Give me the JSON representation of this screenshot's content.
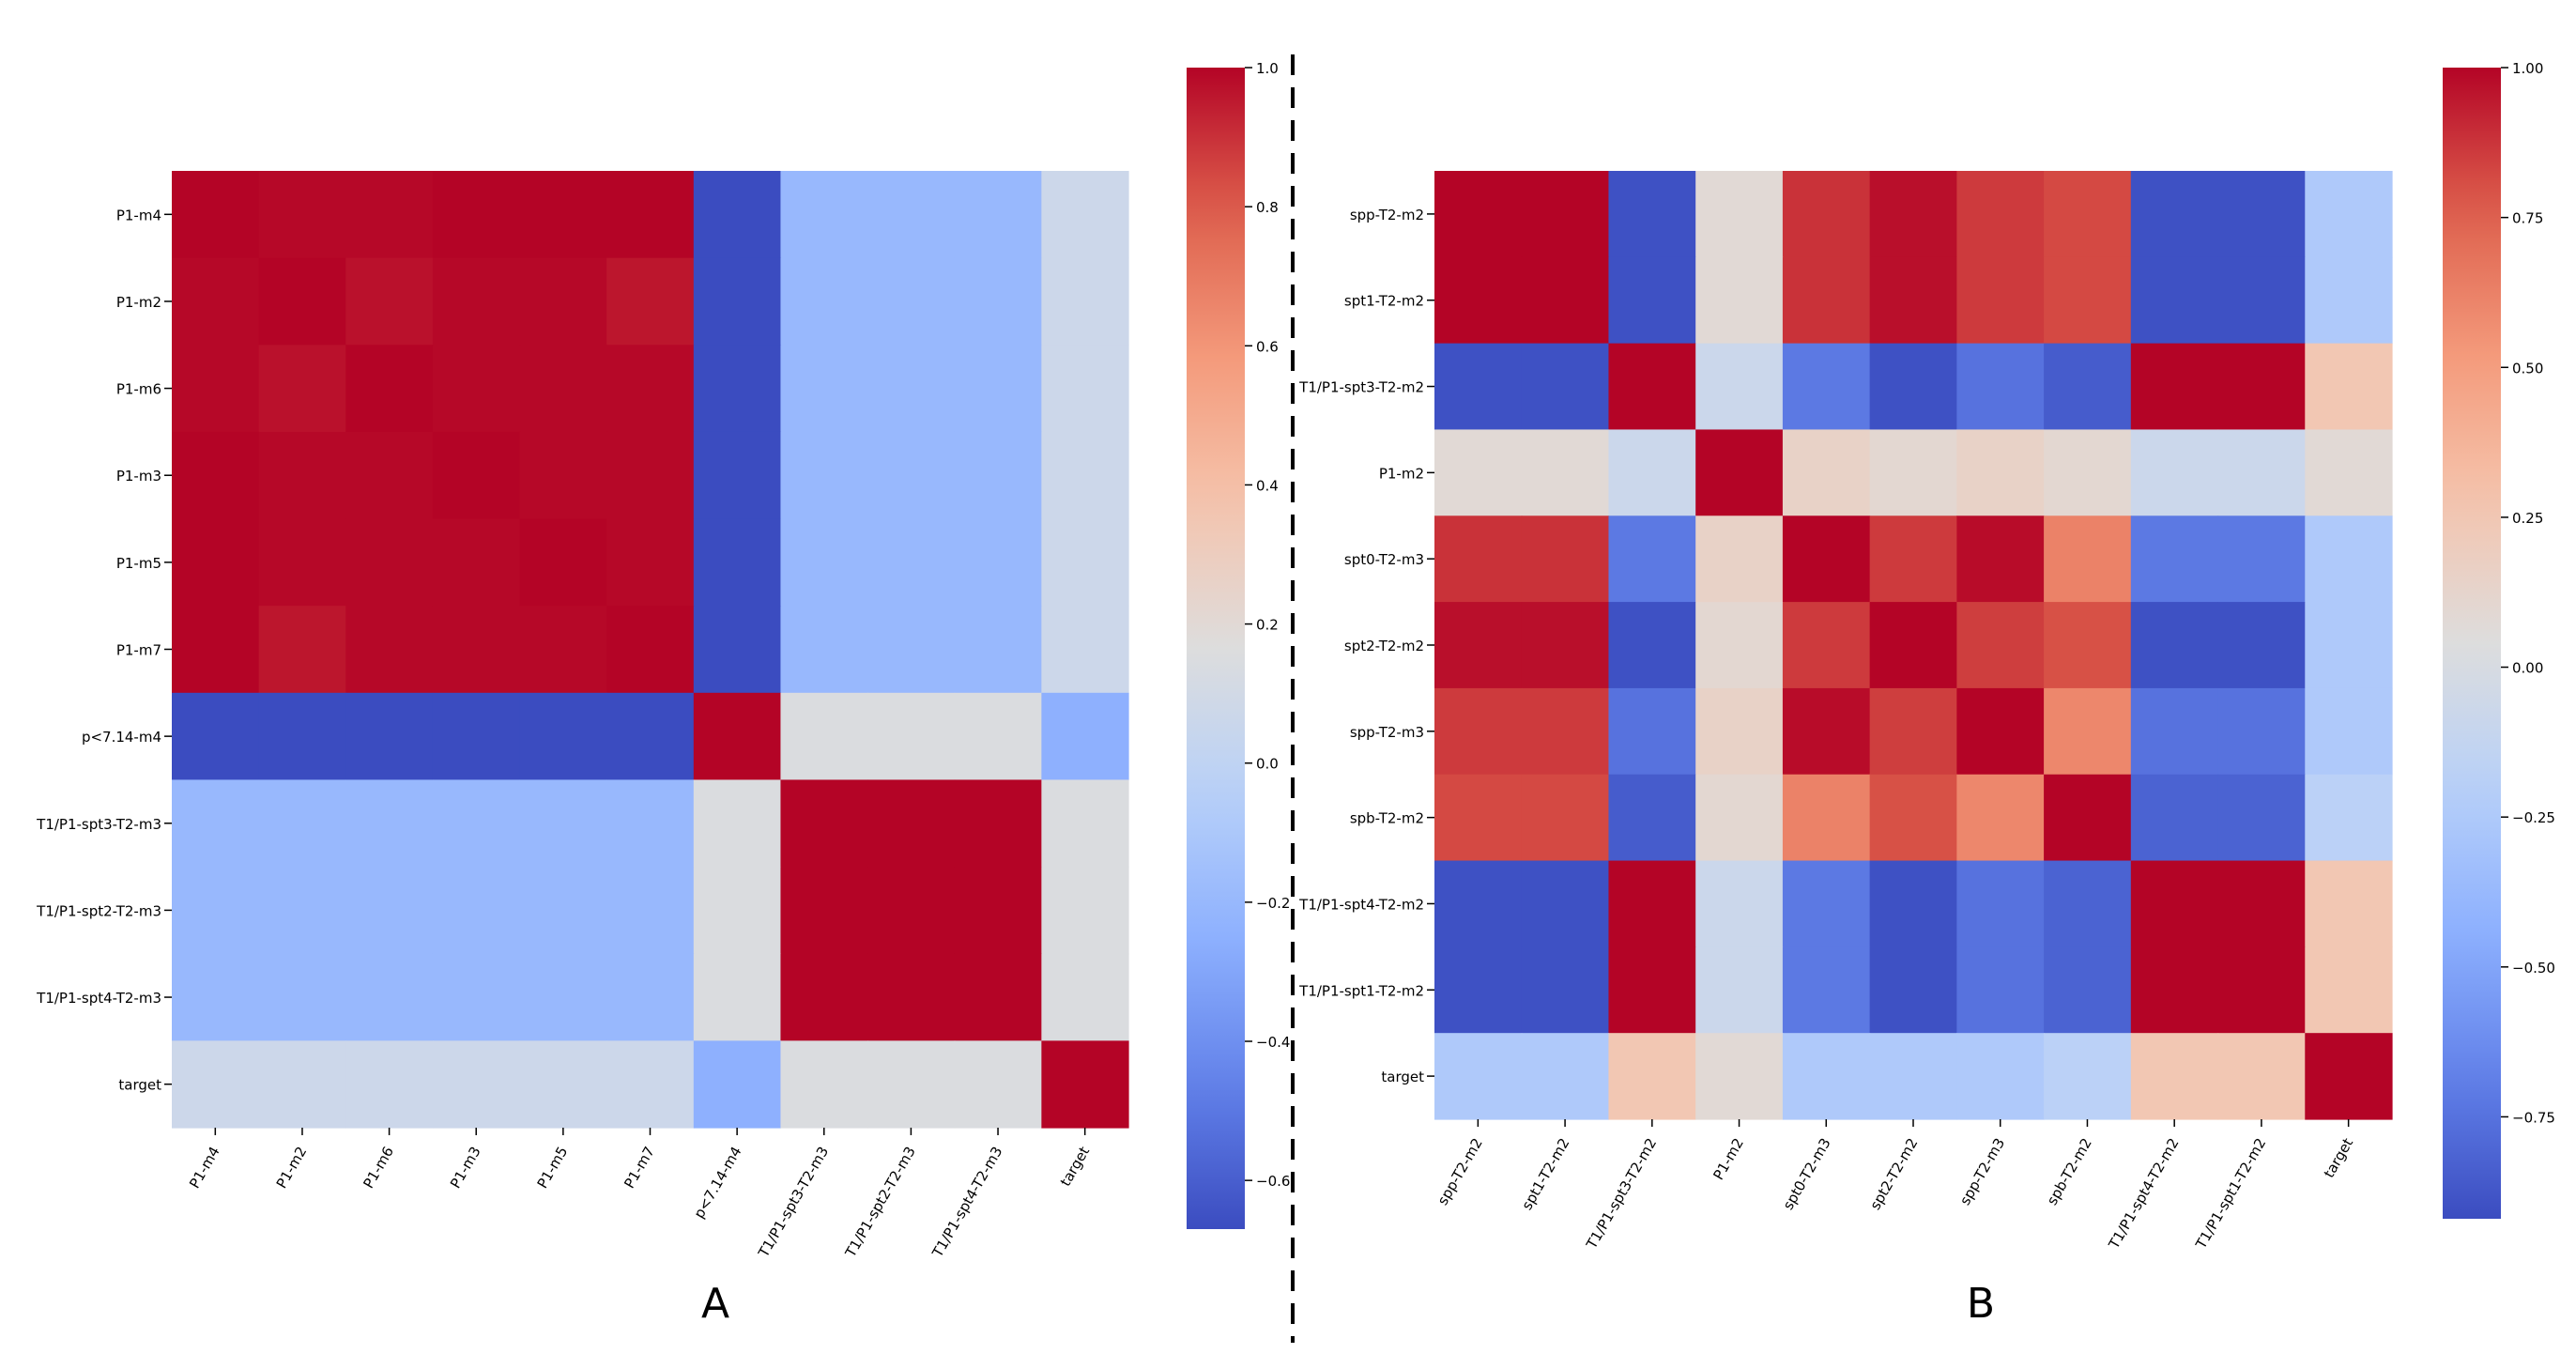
{
  "chart_data": [
    {
      "type": "heatmap",
      "panel_label": "A",
      "labels": [
        "P1-m4",
        "P1-m2",
        "P1-m6",
        "P1-m3",
        "P1-m5",
        "P1-m7",
        "p<7.14-m4",
        "T1/P1-spt3-T2-m3",
        "T1/P1-spt2-T2-m3",
        "T1/P1-spt4-T2-m3",
        "target"
      ],
      "colormap": "coolwarm",
      "vmin": -0.67,
      "vmax": 1.0,
      "colorbar_ticks": [
        "1.0",
        "0.8",
        "0.6",
        "0.4",
        "0.2",
        "0.0",
        "−0.2",
        "−0.4",
        "−0.6"
      ],
      "colorbar_tick_values": [
        1.0,
        0.8,
        0.6,
        0.4,
        0.2,
        0.0,
        -0.2,
        -0.4,
        -0.6
      ],
      "matrix": [
        [
          1.0,
          0.99,
          0.99,
          1.0,
          1.0,
          1.0,
          -0.67,
          -0.2,
          -0.2,
          -0.2,
          0.07
        ],
        [
          0.99,
          1.0,
          0.97,
          0.99,
          0.99,
          0.96,
          -0.67,
          -0.2,
          -0.2,
          -0.2,
          0.07
        ],
        [
          0.99,
          0.97,
          1.0,
          0.99,
          0.99,
          0.99,
          -0.67,
          -0.2,
          -0.2,
          -0.2,
          0.07
        ],
        [
          1.0,
          0.99,
          0.99,
          1.0,
          0.99,
          0.99,
          -0.67,
          -0.2,
          -0.2,
          -0.2,
          0.07
        ],
        [
          1.0,
          0.99,
          0.99,
          0.99,
          1.0,
          0.99,
          -0.67,
          -0.2,
          -0.2,
          -0.2,
          0.07
        ],
        [
          1.0,
          0.96,
          0.99,
          0.99,
          0.99,
          1.0,
          -0.67,
          -0.2,
          -0.2,
          -0.2,
          0.07
        ],
        [
          -0.67,
          -0.67,
          -0.67,
          -0.67,
          -0.67,
          -0.67,
          1.0,
          0.15,
          0.15,
          0.15,
          -0.25
        ],
        [
          -0.2,
          -0.2,
          -0.2,
          -0.2,
          -0.2,
          -0.2,
          0.15,
          1.0,
          1.0,
          1.0,
          0.15
        ],
        [
          -0.2,
          -0.2,
          -0.2,
          -0.2,
          -0.2,
          -0.2,
          0.15,
          1.0,
          1.0,
          1.0,
          0.15
        ],
        [
          -0.2,
          -0.2,
          -0.2,
          -0.2,
          -0.2,
          -0.2,
          0.15,
          1.0,
          1.0,
          1.0,
          0.15
        ],
        [
          0.07,
          0.07,
          0.07,
          0.07,
          0.07,
          0.07,
          -0.25,
          0.15,
          0.15,
          0.15,
          1.0
        ]
      ]
    },
    {
      "type": "heatmap",
      "panel_label": "B",
      "labels": [
        "spp-T2-m2",
        "spt1-T2-m2",
        "T1/P1-spt3-T2-m2",
        "P1-m2",
        "spt0-T2-m3",
        "spt2-T2-m2",
        "spp-T2-m3",
        "spb-T2-m2",
        "T1/P1-spt4-T2-m2",
        "T1/P1-spt1-T2-m2",
        "target"
      ],
      "colormap": "coolwarm",
      "vmin": -0.92,
      "vmax": 1.0,
      "colorbar_ticks": [
        "1.00",
        "0.75",
        "0.50",
        "0.25",
        "0.00",
        "−0.25",
        "−0.50",
        "−0.75"
      ],
      "colorbar_tick_values": [
        1.0,
        0.75,
        0.5,
        0.25,
        0.0,
        -0.25,
        -0.5,
        -0.75
      ],
      "matrix": [
        [
          1.0,
          1.0,
          -0.9,
          0.08,
          0.88,
          0.97,
          0.86,
          0.82,
          -0.9,
          -0.9,
          -0.25
        ],
        [
          1.0,
          1.0,
          -0.9,
          0.08,
          0.88,
          0.97,
          0.86,
          0.82,
          -0.9,
          -0.9,
          -0.25
        ],
        [
          -0.9,
          -0.9,
          1.0,
          -0.08,
          -0.72,
          -0.9,
          -0.75,
          -0.85,
          1.0,
          1.0,
          0.25
        ],
        [
          0.08,
          0.08,
          -0.08,
          1.0,
          0.15,
          0.1,
          0.15,
          0.1,
          -0.08,
          -0.08,
          0.08
        ],
        [
          0.88,
          0.88,
          -0.72,
          0.15,
          1.0,
          0.86,
          0.98,
          0.62,
          -0.72,
          -0.72,
          -0.25
        ],
        [
          0.97,
          0.97,
          -0.9,
          0.1,
          0.86,
          1.0,
          0.85,
          0.8,
          -0.9,
          -0.9,
          -0.25
        ],
        [
          0.86,
          0.86,
          -0.75,
          0.15,
          0.98,
          0.85,
          1.0,
          0.6,
          -0.75,
          -0.75,
          -0.25
        ],
        [
          0.82,
          0.82,
          -0.85,
          0.1,
          0.62,
          0.8,
          0.6,
          1.0,
          -0.82,
          -0.82,
          -0.18
        ],
        [
          -0.9,
          -0.9,
          1.0,
          -0.08,
          -0.72,
          -0.9,
          -0.75,
          -0.82,
          1.0,
          1.0,
          0.25
        ],
        [
          -0.9,
          -0.9,
          1.0,
          -0.08,
          -0.72,
          -0.9,
          -0.75,
          -0.82,
          1.0,
          1.0,
          0.25
        ],
        [
          -0.25,
          -0.25,
          0.25,
          0.08,
          -0.25,
          -0.25,
          -0.25,
          -0.18,
          0.25,
          0.25,
          1.0
        ]
      ]
    }
  ]
}
